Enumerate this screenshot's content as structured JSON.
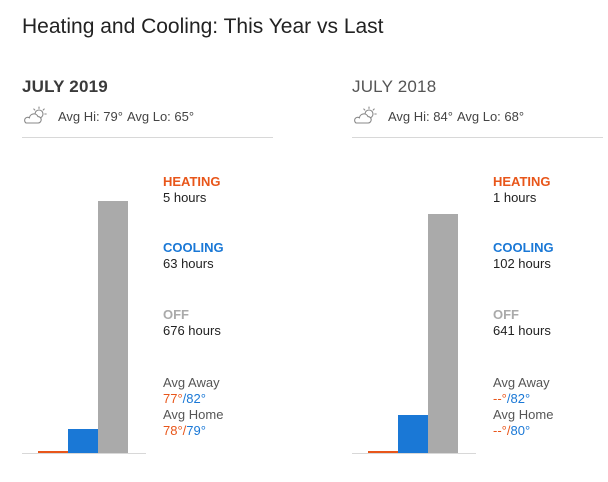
{
  "title": "Heating and Cooling: This Year vs Last",
  "colors": {
    "heating": "#e8561a",
    "cooling": "#1a78d6",
    "off": "#aaaaaa"
  },
  "panels": [
    {
      "month": "JULY 2019",
      "weather_icon": "partly-cloudy-icon",
      "avg_hi": "Avg Hi: 79°",
      "avg_lo": "Avg Lo: 65°",
      "heating_label": "HEATING",
      "heating_value": "5 hours",
      "heating_hours": 5,
      "cooling_label": "COOLING",
      "cooling_value": "63 hours",
      "cooling_hours": 63,
      "off_label": "OFF",
      "off_value": "676 hours",
      "off_hours": 676,
      "avg_away_label": "Avg Away",
      "avg_away_heat": "77°",
      "avg_away_sep": "/",
      "avg_away_cool": "82°",
      "avg_home_label": "Avg Home",
      "avg_home_heat": "78°",
      "avg_home_sep": "/",
      "avg_home_cool": "79°"
    },
    {
      "month": "JULY 2018",
      "weather_icon": "partly-cloudy-icon",
      "avg_hi": "Avg Hi: 84°",
      "avg_lo": "Avg Lo: 68°",
      "heating_label": "HEATING",
      "heating_value": "1 hours",
      "heating_hours": 1,
      "cooling_label": "COOLING",
      "cooling_value": "102 hours",
      "cooling_hours": 102,
      "off_label": "OFF",
      "off_value": "641 hours",
      "off_hours": 641,
      "avg_away_label": "Avg Away",
      "avg_away_heat": "--°",
      "avg_away_sep": "/",
      "avg_away_cool": "82°",
      "avg_home_label": "Avg Home",
      "avg_home_heat": "--°",
      "avg_home_sep": "/",
      "avg_home_cool": "80°"
    }
  ]
}
